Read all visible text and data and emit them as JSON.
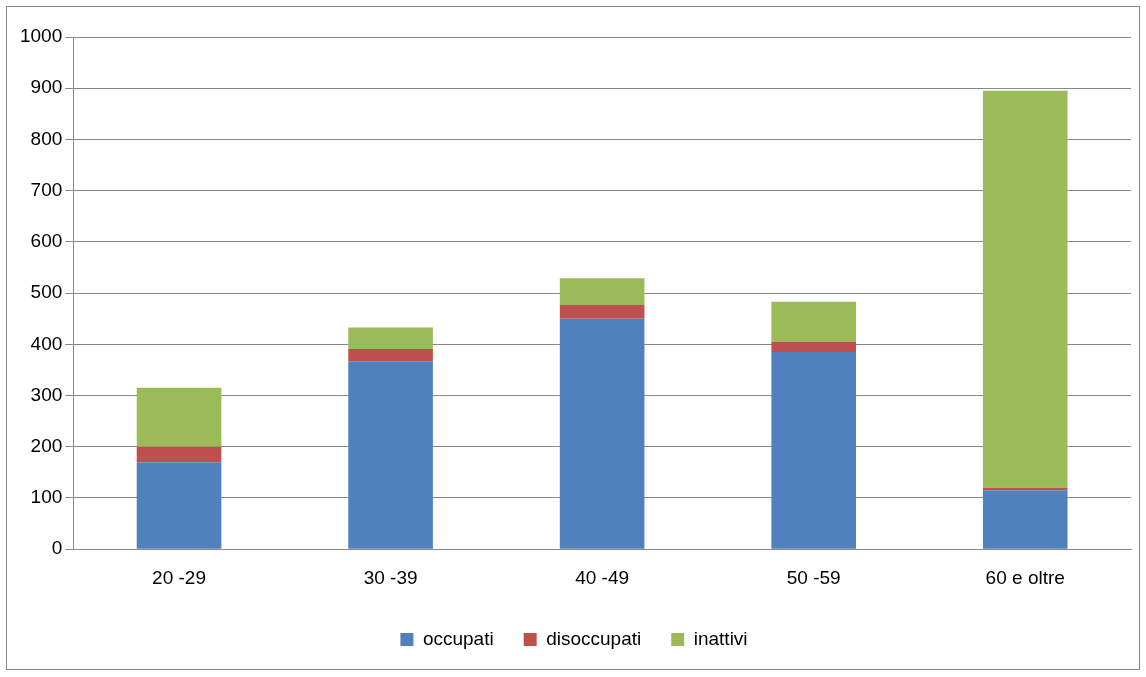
{
  "chart_data": {
    "type": "bar",
    "stacked": true,
    "categories": [
      "20 -29",
      "30 -39",
      "40 -49",
      "50 -59",
      "60 e oltre"
    ],
    "series": [
      {
        "name": "occupati",
        "color": "#4f81bd",
        "values": [
          170,
          367,
          450,
          385,
          115
        ]
      },
      {
        "name": "disoccupati",
        "color": "#c0504d",
        "values": [
          30,
          24,
          27,
          20,
          5
        ]
      },
      {
        "name": "inattivi",
        "color": "#9bbb59",
        "values": [
          115,
          42,
          52,
          78,
          775
        ]
      }
    ],
    "ylim": [
      0,
      1000
    ],
    "yticks": [
      0,
      100,
      200,
      300,
      400,
      500,
      600,
      700,
      800,
      900,
      1000
    ],
    "grid": "y",
    "legend": "bottom"
  }
}
